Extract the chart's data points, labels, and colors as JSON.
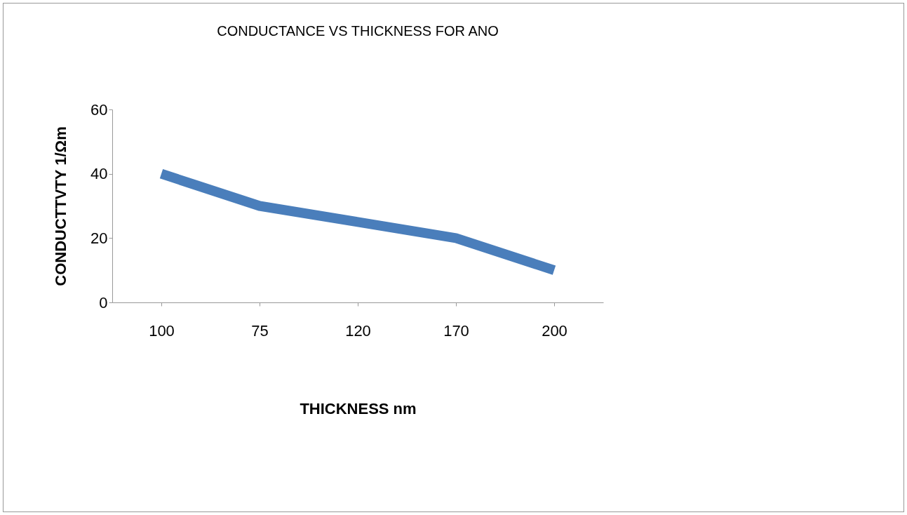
{
  "chart_data": {
    "type": "line",
    "title": "CONDUCTANCE VS THICKNESS FOR ANO",
    "xlabel": "THICKNESS nm",
    "ylabel": "CONDUCTTVTY 1/Ωm",
    "categories": [
      "100",
      "75",
      "120",
      "170",
      "200"
    ],
    "series": [
      {
        "color": "#4a7ebb",
        "values": [
          40,
          30,
          25,
          20,
          10
        ]
      }
    ],
    "ylim": [
      0,
      60
    ],
    "yticks": [
      0,
      20,
      40,
      60
    ],
    "grid": false,
    "legend": false,
    "marker": "none",
    "line_style": "solid"
  }
}
